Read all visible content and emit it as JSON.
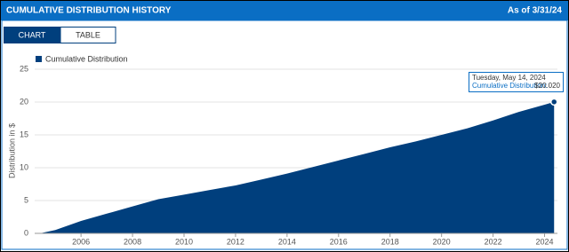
{
  "header": {
    "title": "CUMULATIVE DISTRIBUTION HISTORY",
    "as_of": "As of 3/31/24"
  },
  "tabs": [
    "CHART",
    "TABLE"
  ],
  "chart_data": {
    "type": "area",
    "y_label": "Distribution in $",
    "x": [
      2004.4,
      2005,
      2006,
      2007,
      2008,
      2009,
      2010,
      2011,
      2012,
      2013,
      2014,
      2015,
      2016,
      2017,
      2018,
      2019,
      2020,
      2021,
      2022,
      2023,
      2024,
      2024.37
    ],
    "series": [
      {
        "name": "Cumulative Distribution",
        "color": "#003f7d",
        "values": [
          0,
          0.5,
          1.9,
          3.0,
          4.1,
          5.2,
          5.9,
          6.6,
          7.3,
          8.2,
          9.1,
          10.1,
          11.1,
          12.1,
          13.1,
          14.0,
          15.0,
          16.0,
          17.2,
          18.5,
          19.6,
          20.02
        ]
      }
    ],
    "xlim": [
      2004.2,
      2024.5
    ],
    "ylim": [
      0,
      25
    ],
    "xticks": [
      2006,
      2008,
      2010,
      2012,
      2014,
      2016,
      2018,
      2020,
      2022,
      2024
    ],
    "yticks": [
      0,
      5,
      10,
      15,
      20,
      25
    ],
    "grid": true,
    "tooltip": {
      "date": "Tuesday, May 14, 2024",
      "label": "Cumulative Distribution:",
      "value": "$20.020"
    }
  }
}
